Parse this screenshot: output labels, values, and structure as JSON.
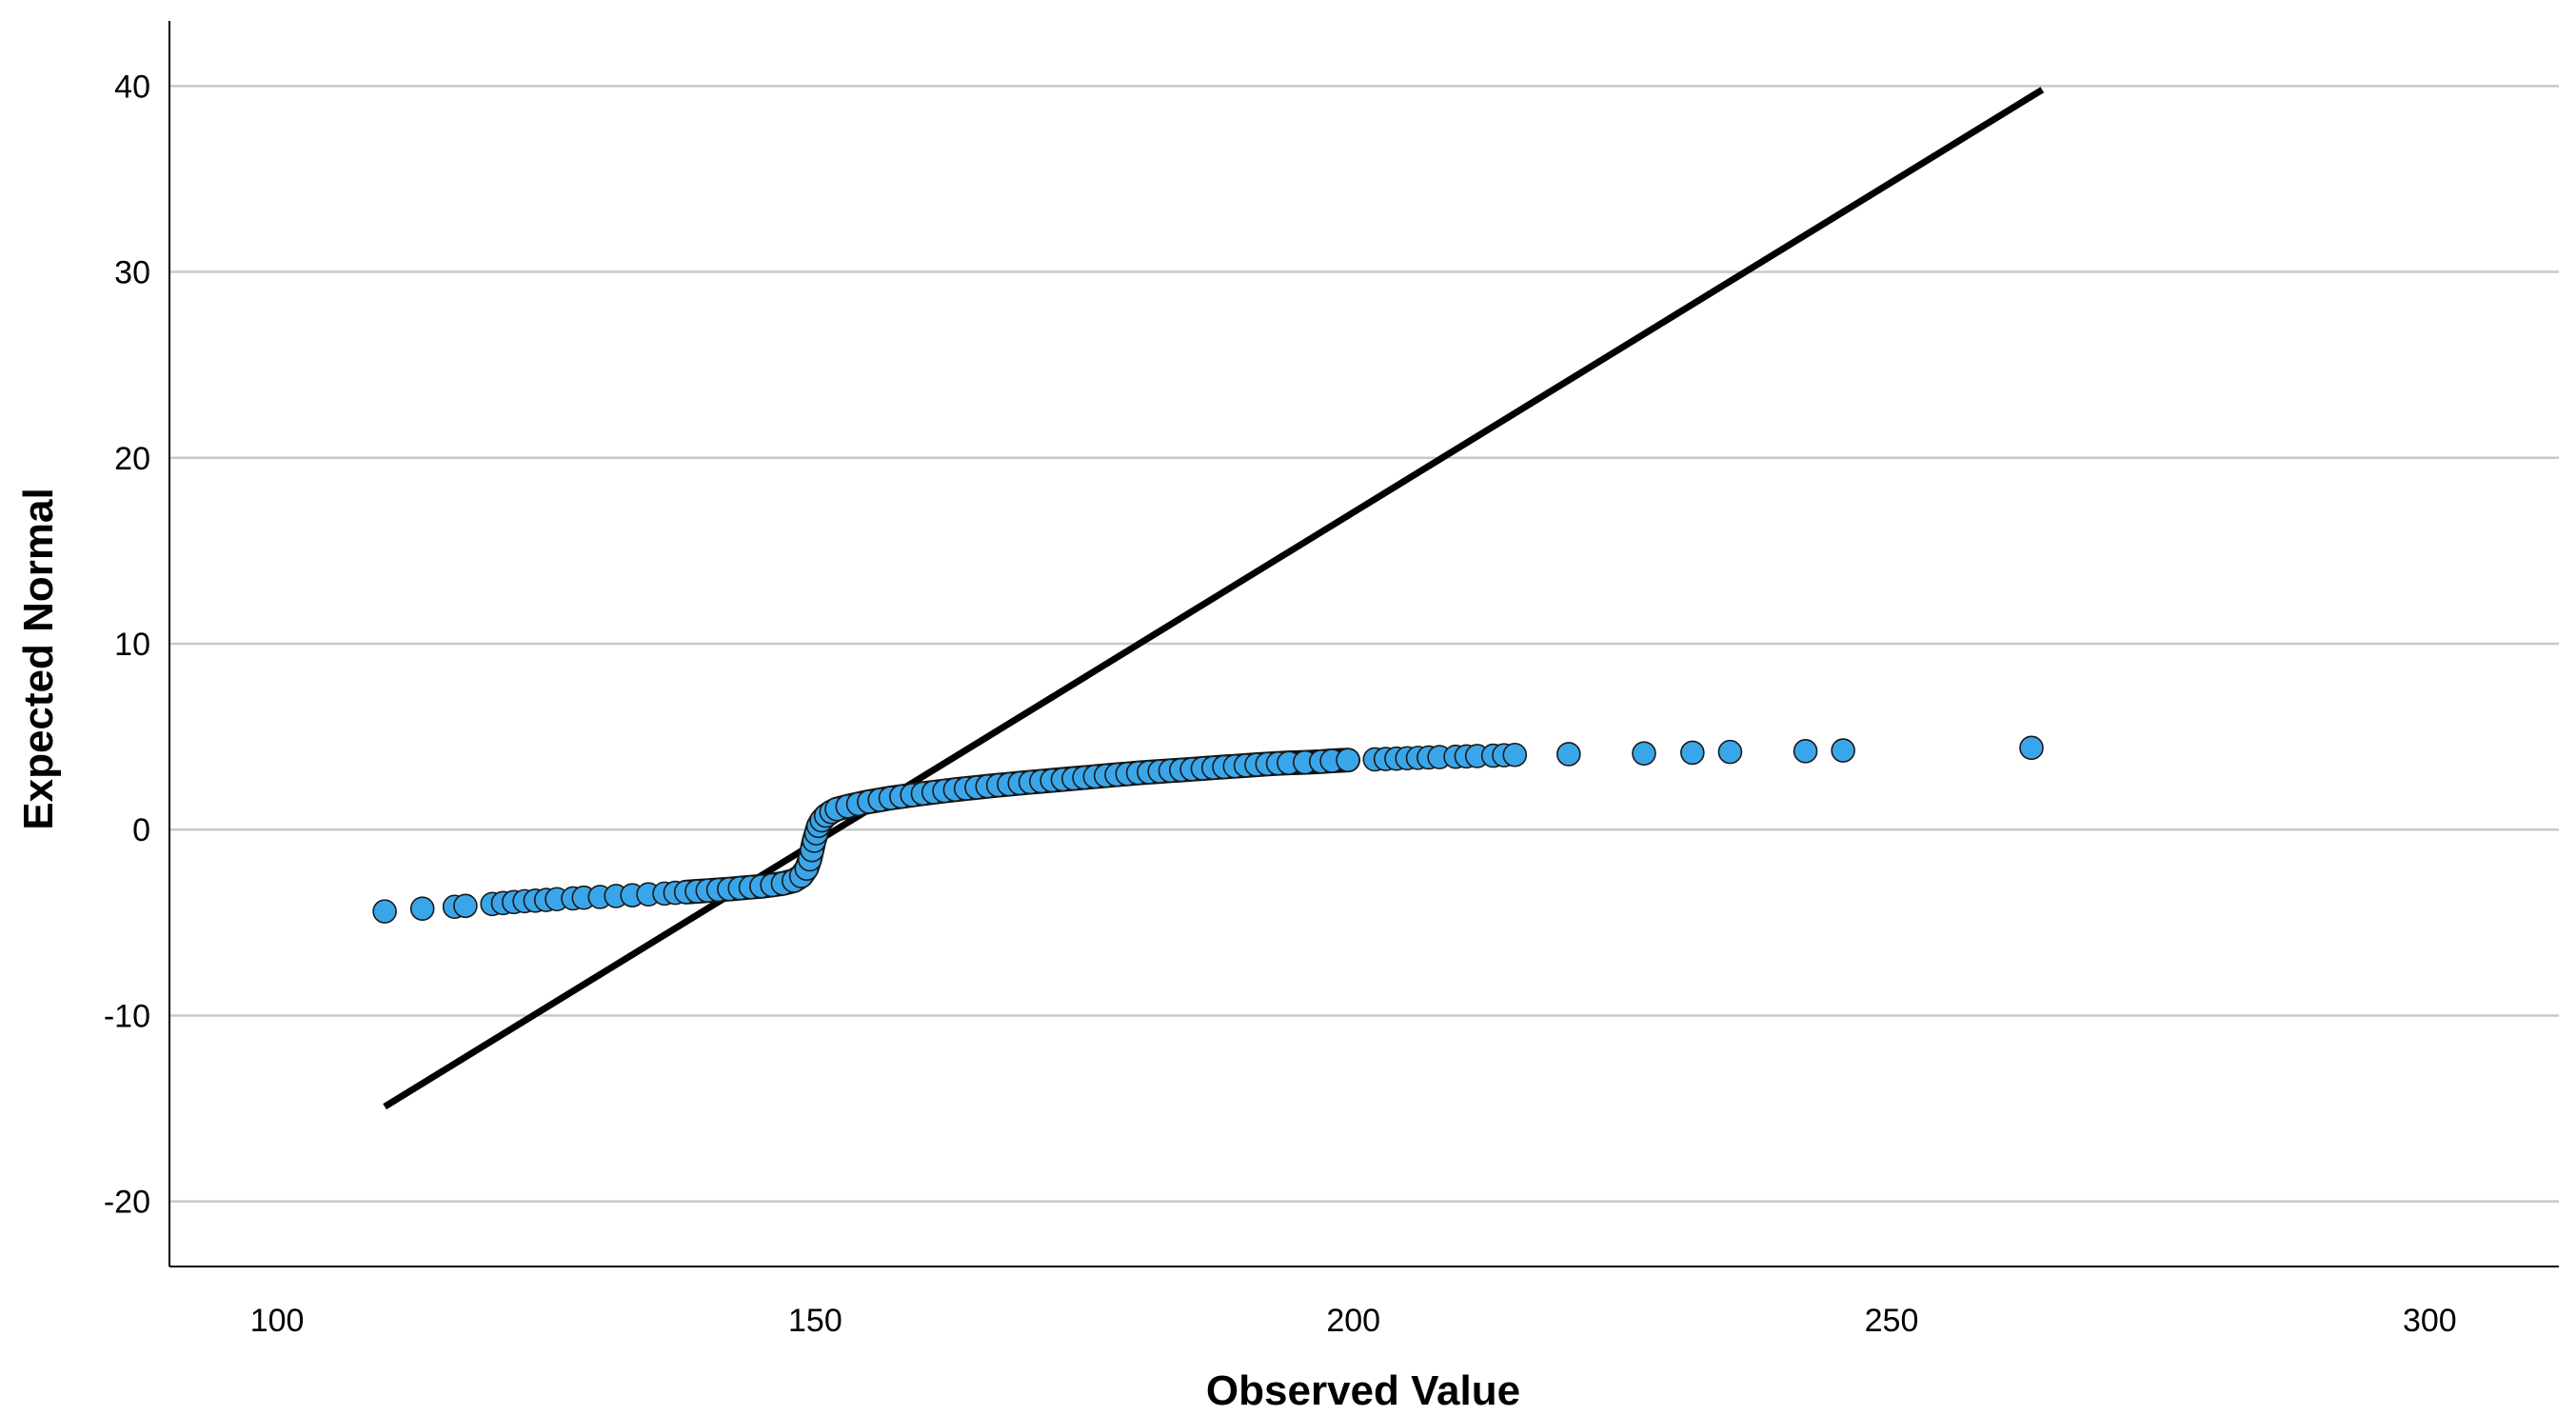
{
  "chart_data": {
    "type": "scatter",
    "title": "",
    "xlabel": "Observed Value",
    "ylabel": "Expected Normal",
    "xlim": [
      90,
      312
    ],
    "ylim": [
      -23.5,
      43.5
    ],
    "grid": "horizontal",
    "x_ticks": [
      100,
      150,
      200,
      250,
      300
    ],
    "y_ticks": [
      -20,
      -10,
      0,
      10,
      20,
      30,
      40
    ],
    "x_tick_labels": [
      "100",
      "150",
      "200",
      "250",
      "300"
    ],
    "y_tick_labels": [
      "-20",
      "-10",
      "0",
      "10",
      "20",
      "30",
      "40"
    ],
    "point_color": "#3aa6ea",
    "reference_line": {
      "color": "#000000",
      "from": [
        110,
        -14.9
      ],
      "to": [
        264,
        39.8
      ]
    },
    "series": [
      {
        "name": "",
        "points": [
          [
            110.0,
            -4.4
          ],
          [
            113.5,
            -4.25
          ],
          [
            116.5,
            -4.15
          ],
          [
            117.5,
            -4.1
          ],
          [
            120.0,
            -4.0
          ],
          [
            121.0,
            -3.95
          ],
          [
            122.0,
            -3.9
          ],
          [
            123.0,
            -3.85
          ],
          [
            124.0,
            -3.82
          ],
          [
            125.0,
            -3.78
          ],
          [
            126.0,
            -3.74
          ],
          [
            127.5,
            -3.7
          ],
          [
            128.5,
            -3.66
          ],
          [
            130.0,
            -3.62
          ],
          [
            131.5,
            -3.57
          ],
          [
            133.0,
            -3.53
          ],
          [
            134.5,
            -3.48
          ],
          [
            136.0,
            -3.44
          ],
          [
            137.0,
            -3.4
          ],
          [
            138.0,
            -3.36
          ],
          [
            139.0,
            -3.32
          ],
          [
            140.0,
            -3.28
          ],
          [
            141.0,
            -3.24
          ],
          [
            142.0,
            -3.2
          ],
          [
            143.0,
            -3.15
          ],
          [
            144.0,
            -3.1
          ],
          [
            145.0,
            -3.05
          ],
          [
            146.0,
            -2.98
          ],
          [
            147.0,
            -2.9
          ],
          [
            148.0,
            -2.75
          ],
          [
            148.7,
            -2.5
          ],
          [
            149.2,
            -2.1
          ],
          [
            149.5,
            -1.6
          ],
          [
            149.7,
            -1.1
          ],
          [
            149.9,
            -0.6
          ],
          [
            150.1,
            -0.2
          ],
          [
            150.3,
            0.2
          ],
          [
            150.6,
            0.5
          ],
          [
            151.0,
            0.75
          ],
          [
            151.5,
            0.95
          ],
          [
            152.0,
            1.1
          ],
          [
            153.0,
            1.25
          ],
          [
            154.0,
            1.38
          ],
          [
            155.0,
            1.5
          ],
          [
            156.0,
            1.6
          ],
          [
            157.0,
            1.7
          ],
          [
            158.0,
            1.78
          ],
          [
            159.0,
            1.86
          ],
          [
            160.0,
            1.94
          ],
          [
            161.0,
            2.01
          ],
          [
            162.0,
            2.08
          ],
          [
            163.0,
            2.15
          ],
          [
            164.0,
            2.21
          ],
          [
            165.0,
            2.27
          ],
          [
            166.0,
            2.33
          ],
          [
            167.0,
            2.39
          ],
          [
            168.0,
            2.44
          ],
          [
            169.0,
            2.5
          ],
          [
            170.0,
            2.55
          ],
          [
            171.0,
            2.6
          ],
          [
            172.0,
            2.65
          ],
          [
            173.0,
            2.7
          ],
          [
            174.0,
            2.75
          ],
          [
            175.0,
            2.8
          ],
          [
            176.0,
            2.85
          ],
          [
            177.0,
            2.9
          ],
          [
            178.0,
            2.95
          ],
          [
            179.0,
            3.0
          ],
          [
            180.0,
            3.05
          ],
          [
            181.0,
            3.09
          ],
          [
            182.0,
            3.13
          ],
          [
            183.0,
            3.17
          ],
          [
            184.0,
            3.21
          ],
          [
            185.0,
            3.25
          ],
          [
            186.0,
            3.29
          ],
          [
            187.0,
            3.33
          ],
          [
            188.0,
            3.37
          ],
          [
            189.0,
            3.41
          ],
          [
            190.0,
            3.45
          ],
          [
            191.0,
            3.49
          ],
          [
            192.0,
            3.53
          ],
          [
            193.0,
            3.56
          ],
          [
            194.0,
            3.59
          ],
          [
            195.5,
            3.62
          ],
          [
            197.0,
            3.66
          ],
          [
            198.0,
            3.7
          ],
          [
            199.5,
            3.74
          ],
          [
            202.0,
            3.78
          ],
          [
            203.0,
            3.8
          ],
          [
            204.0,
            3.82
          ],
          [
            205.0,
            3.84
          ],
          [
            206.0,
            3.86
          ],
          [
            207.0,
            3.88
          ],
          [
            208.0,
            3.9
          ],
          [
            209.5,
            3.92
          ],
          [
            210.5,
            3.94
          ],
          [
            211.5,
            3.96
          ],
          [
            213.0,
            3.98
          ],
          [
            214.0,
            4.0
          ],
          [
            215.0,
            4.02
          ],
          [
            220.0,
            4.06
          ],
          [
            227.0,
            4.1
          ],
          [
            231.5,
            4.14
          ],
          [
            235.0,
            4.18
          ],
          [
            242.0,
            4.22
          ],
          [
            245.5,
            4.26
          ],
          [
            263.0,
            4.4
          ]
        ]
      }
    ]
  }
}
